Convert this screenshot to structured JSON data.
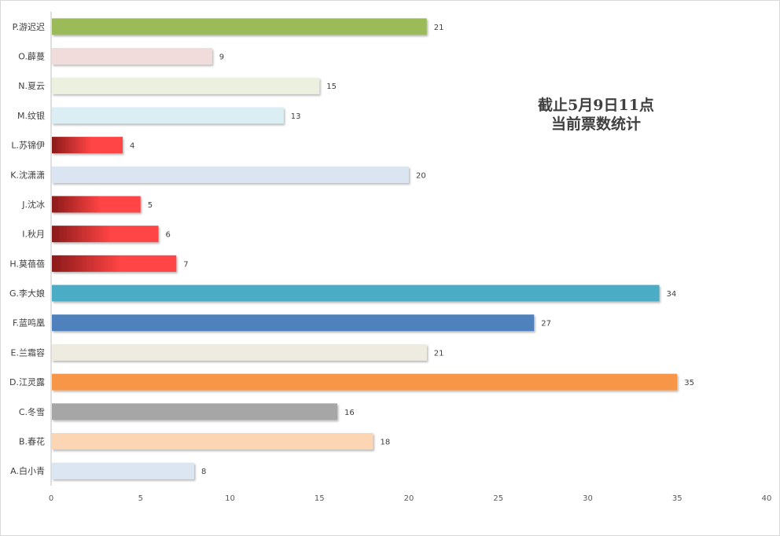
{
  "chart_data": {
    "type": "bar",
    "orientation": "horizontal",
    "title": [
      "截止5月9日11点",
      "当前票数统计"
    ],
    "xlabel": "",
    "ylabel": "",
    "xlim": [
      0,
      40
    ],
    "x_ticks": [
      "0",
      "5",
      "10",
      "15",
      "20",
      "25",
      "30",
      "35",
      "40"
    ],
    "grid": false,
    "legend": "none",
    "data_labels": true,
    "categories": [
      "A.白小青",
      "B.春花",
      "C.冬雪",
      "D.江灵露",
      "E.兰霜容",
      "F.蓝鸣凰",
      "G.李大娘",
      "H.莫蓓蓓",
      "I.秋月",
      "J.沈冰",
      "K.沈潇潇",
      "L.苏锦伊",
      "M.纹银",
      "N.夏云",
      "O.薜蔓",
      "P.游迟迟"
    ],
    "values": [
      8,
      18,
      16,
      35,
      21,
      27,
      34,
      7,
      6,
      5,
      20,
      4,
      13,
      15,
      9,
      21
    ],
    "bar_colors": [
      "#dce6f2",
      "#fcd5b5",
      "#a6a6a6",
      "#f79646",
      "#eeece1",
      "#4f81bd",
      "#4bacc6",
      "gradient-red",
      "gradient-red",
      "gradient-red",
      "#dbe5f1",
      "gradient-red",
      "#daeef3",
      "#ebf1de",
      "#f2dcdb",
      "#9bbb59"
    ],
    "gradient_red": [
      "#8b1a1a",
      "#ff4444"
    ]
  }
}
